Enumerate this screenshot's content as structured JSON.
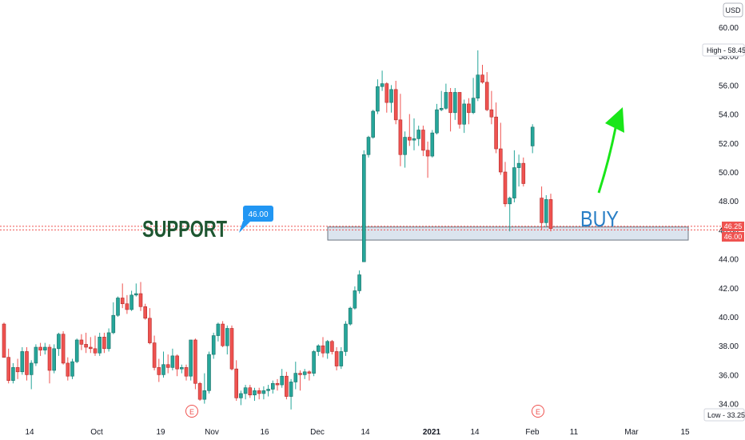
{
  "header": {
    "currency": "USD"
  },
  "colors": {
    "up": "#26a69a",
    "up_dark": "#1b6f66",
    "down": "#ef5350",
    "down_dark": "#b22b2b",
    "support_line": "#ef5350",
    "zone_fill": "#dbe4ee",
    "zone_border": "#6b7480",
    "arrow": "#19e619",
    "price_badge": "#2196f3",
    "buy_text": "#2a7fc6",
    "support_text": "#1e5631"
  },
  "annotations": {
    "support_text": "SUPPORT",
    "buy_text": "BUY",
    "price_badge": "46.00",
    "high_label": "High",
    "high_value": "58.45",
    "low_label": "Low",
    "low_value": "33.25",
    "price_label_1": "46.25",
    "price_label_2": "46.00",
    "earnings_marker": "E"
  },
  "chart_data": {
    "type": "candlestick",
    "y_range": [
      33.2,
      61.2
    ],
    "y_ticks": [
      "34.00",
      "36.00",
      "38.00",
      "40.00",
      "42.00",
      "44.00",
      "46.00",
      "48.00",
      "50.00",
      "52.00",
      "54.00",
      "56.00",
      "58.00",
      "60.00"
    ],
    "x_ticks": [
      {
        "label": "14",
        "bold": false
      },
      {
        "label": "Oct",
        "bold": false
      },
      {
        "label": "19",
        "bold": false
      },
      {
        "label": "Nov",
        "bold": false
      },
      {
        "label": "16",
        "bold": false
      },
      {
        "label": "Dec",
        "bold": false
      },
      {
        "label": "14",
        "bold": false
      },
      {
        "label": "2021",
        "bold": true
      },
      {
        "label": "14",
        "bold": false
      },
      {
        "label": "Feb",
        "bold": false
      },
      {
        "label": "11",
        "bold": false
      },
      {
        "label": "Mar",
        "bold": false
      },
      {
        "label": "15",
        "bold": false
      }
    ],
    "support_levels": [
      46.25,
      46.0
    ],
    "zone": {
      "high": 46.2,
      "low": 45.3
    },
    "high": 58.45,
    "low": 33.25,
    "candles": [
      [
        39.5,
        39.6,
        37.2,
        37.2
      ],
      [
        37.2,
        37.8,
        35.4,
        35.6
      ],
      [
        35.6,
        36.8,
        35.4,
        36.5
      ],
      [
        36.5,
        37.1,
        35.7,
        36.2
      ],
      [
        36.2,
        37.9,
        36.0,
        37.6
      ],
      [
        37.6,
        37.9,
        35.6,
        36.0
      ],
      [
        36.0,
        37.0,
        35.0,
        36.8
      ],
      [
        36.8,
        38.1,
        36.6,
        37.9
      ],
      [
        37.9,
        38.2,
        37.3,
        37.7
      ],
      [
        37.7,
        38.2,
        37.4,
        37.9
      ],
      [
        37.9,
        38.1,
        35.4,
        36.3
      ],
      [
        36.3,
        38.1,
        36.1,
        37.8
      ],
      [
        37.8,
        38.9,
        37.3,
        38.8
      ],
      [
        38.8,
        39.0,
        36.7,
        36.8
      ],
      [
        36.8,
        37.2,
        35.6,
        35.9
      ],
      [
        35.9,
        37.1,
        35.7,
        36.9
      ],
      [
        36.9,
        38.5,
        36.8,
        38.4
      ],
      [
        38.4,
        38.8,
        37.7,
        38.1
      ],
      [
        38.1,
        38.9,
        37.5,
        37.9
      ],
      [
        37.9,
        38.6,
        37.5,
        37.8
      ],
      [
        37.8,
        38.7,
        37.3,
        37.5
      ],
      [
        37.5,
        38.9,
        37.3,
        38.6
      ],
      [
        38.6,
        38.9,
        37.5,
        37.8
      ],
      [
        37.8,
        39.2,
        37.6,
        38.9
      ],
      [
        38.9,
        41.0,
        38.8,
        40.1
      ],
      [
        40.1,
        41.4,
        40.0,
        41.3
      ],
      [
        41.3,
        42.3,
        40.6,
        40.9
      ],
      [
        40.9,
        41.5,
        40.2,
        40.5
      ],
      [
        40.5,
        41.8,
        40.4,
        41.5
      ],
      [
        41.5,
        42.3,
        41.4,
        41.6
      ],
      [
        41.6,
        42.4,
        40.4,
        40.7
      ],
      [
        40.7,
        40.9,
        39.8,
        39.9
      ],
      [
        39.9,
        40.6,
        38.1,
        38.2
      ],
      [
        38.2,
        38.7,
        36.3,
        36.5
      ],
      [
        36.5,
        37.1,
        35.5,
        36.0
      ],
      [
        36.0,
        37.6,
        35.8,
        36.7
      ],
      [
        36.7,
        37.4,
        36.1,
        36.5
      ],
      [
        36.5,
        37.8,
        36.3,
        37.3
      ],
      [
        37.3,
        37.4,
        35.9,
        36.4
      ],
      [
        36.4,
        36.7,
        36.1,
        36.5
      ],
      [
        36.5,
        36.7,
        35.6,
        35.9
      ],
      [
        35.9,
        38.4,
        35.6,
        38.4
      ],
      [
        38.4,
        38.5,
        35.0,
        35.4
      ],
      [
        35.4,
        35.5,
        34.2,
        34.3
      ],
      [
        34.3,
        36.1,
        34.0,
        34.9
      ],
      [
        34.9,
        37.6,
        34.7,
        37.4
      ],
      [
        37.4,
        38.9,
        37.1,
        38.7
      ],
      [
        38.7,
        39.6,
        38.3,
        39.5
      ],
      [
        39.5,
        39.7,
        37.9,
        38.0
      ],
      [
        38.0,
        39.4,
        37.4,
        39.2
      ],
      [
        39.2,
        39.4,
        36.3,
        36.4
      ],
      [
        36.4,
        37.0,
        34.2,
        34.4
      ],
      [
        34.4,
        34.9,
        33.9,
        34.7
      ],
      [
        34.7,
        35.3,
        34.3,
        35.1
      ],
      [
        35.1,
        35.3,
        34.4,
        34.6
      ],
      [
        34.6,
        35.1,
        34.2,
        34.9
      ],
      [
        34.9,
        35.1,
        34.3,
        34.7
      ],
      [
        34.7,
        35.2,
        34.3,
        34.9
      ],
      [
        34.9,
        35.3,
        34.5,
        35.0
      ],
      [
        35.0,
        35.6,
        34.7,
        35.4
      ],
      [
        35.4,
        35.7,
        34.9,
        35.3
      ],
      [
        35.3,
        36.4,
        35.1,
        35.9
      ],
      [
        35.9,
        36.2,
        34.3,
        34.5
      ],
      [
        34.5,
        35.7,
        33.6,
        35.5
      ],
      [
        35.5,
        36.9,
        35.0,
        36.1
      ],
      [
        36.1,
        36.3,
        34.9,
        36.0
      ],
      [
        36.0,
        36.4,
        35.7,
        36.2
      ],
      [
        36.2,
        36.3,
        35.6,
        36.1
      ],
      [
        36.1,
        37.7,
        35.9,
        37.6
      ],
      [
        37.6,
        38.1,
        37.3,
        38.0
      ],
      [
        38.0,
        38.6,
        37.2,
        37.5
      ],
      [
        37.5,
        38.4,
        37.1,
        38.3
      ],
      [
        38.3,
        38.4,
        37.4,
        37.6
      ],
      [
        37.6,
        37.9,
        36.3,
        36.6
      ],
      [
        36.6,
        37.9,
        36.4,
        37.6
      ],
      [
        37.6,
        39.7,
        37.3,
        39.5
      ],
      [
        39.5,
        40.7,
        39.4,
        40.6
      ],
      [
        40.6,
        42.1,
        40.5,
        41.8
      ],
      [
        41.8,
        43.2,
        41.6,
        42.9
      ],
      [
        43.8,
        51.5,
        43.8,
        51.2
      ],
      [
        51.2,
        52.5,
        51.0,
        52.4
      ],
      [
        52.4,
        54.3,
        52.3,
        54.2
      ],
      [
        54.2,
        56.4,
        54.0,
        55.9
      ],
      [
        55.9,
        57.0,
        55.6,
        56.1
      ],
      [
        56.1,
        56.2,
        54.1,
        54.8
      ],
      [
        54.8,
        56.0,
        54.1,
        55.7
      ],
      [
        55.7,
        56.3,
        53.3,
        53.6
      ],
      [
        53.6,
        55.4,
        50.4,
        51.2
      ],
      [
        51.2,
        52.8,
        50.3,
        52.4
      ],
      [
        52.4,
        54.0,
        51.8,
        52.2
      ],
      [
        52.2,
        53.7,
        51.5,
        52.3
      ],
      [
        52.3,
        53.2,
        51.8,
        52.9
      ],
      [
        52.9,
        53.2,
        51.1,
        51.5
      ],
      [
        51.5,
        52.1,
        49.6,
        51.1
      ],
      [
        51.1,
        52.9,
        51.0,
        52.7
      ],
      [
        52.7,
        54.7,
        52.6,
        54.3
      ],
      [
        54.3,
        55.6,
        54.2,
        54.4
      ],
      [
        54.4,
        56.1,
        54.3,
        55.5
      ],
      [
        55.5,
        55.8,
        52.8,
        54.1
      ],
      [
        54.1,
        55.8,
        53.6,
        55.5
      ],
      [
        55.5,
        55.5,
        53.0,
        53.3
      ],
      [
        53.3,
        55.0,
        52.7,
        54.7
      ],
      [
        54.7,
        55.1,
        53.3,
        54.1
      ],
      [
        54.1,
        56.5,
        54.0,
        55.1
      ],
      [
        55.1,
        58.4,
        54.9,
        56.7
      ],
      [
        56.7,
        57.4,
        56.1,
        56.2
      ],
      [
        56.2,
        56.9,
        54.2,
        54.3
      ],
      [
        54.3,
        55.6,
        53.3,
        53.8
      ],
      [
        53.8,
        54.8,
        51.3,
        51.6
      ],
      [
        51.6,
        53.4,
        49.8,
        50.0
      ],
      [
        50.0,
        50.7,
        47.6,
        47.8
      ],
      [
        47.8,
        48.3,
        45.9,
        48.2
      ],
      [
        48.2,
        51.5,
        47.9,
        50.3
      ],
      [
        50.3,
        51.2,
        49.0,
        50.6
      ],
      [
        50.6,
        51.0,
        49.0,
        49.2
      ],
      [
        null,
        null,
        null,
        null
      ],
      [
        51.8,
        53.3,
        51.3,
        53.1
      ],
      [
        null,
        null,
        null,
        null
      ],
      [
        48.2,
        49.0,
        46.0,
        46.5
      ],
      [
        46.5,
        48.4,
        46.2,
        48.1
      ],
      [
        48.1,
        48.5,
        45.9,
        46.1
      ]
    ]
  }
}
